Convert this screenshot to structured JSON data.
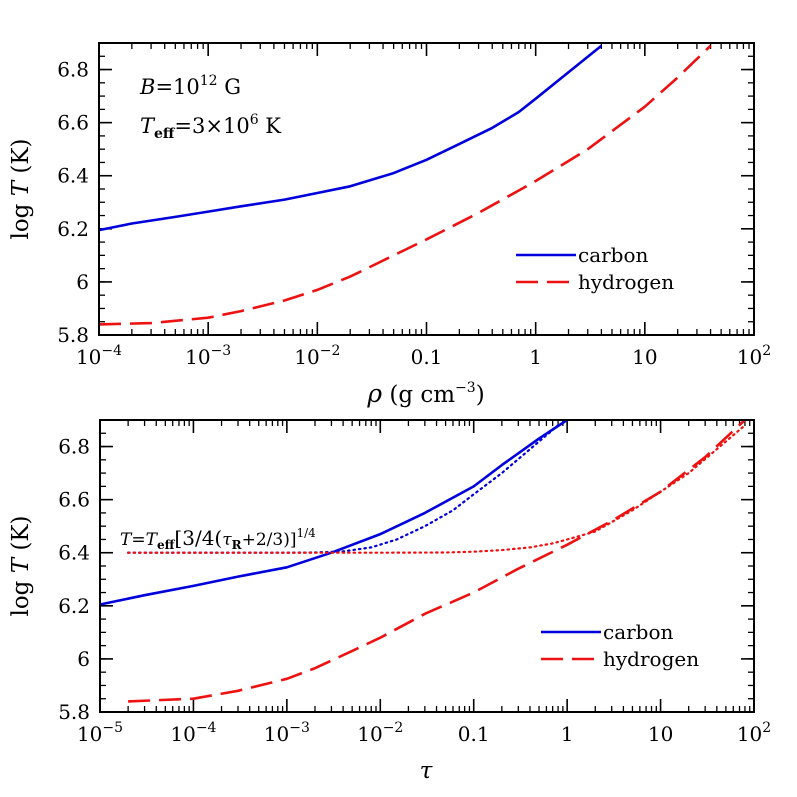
{
  "chart_data": [
    {
      "type": "line",
      "xscale": "log",
      "xlim": [
        0.0001,
        100
      ],
      "ylim": [
        5.8,
        6.9
      ],
      "xticks": [
        {
          "v": 0.0001,
          "base": "10",
          "exp": "−4",
          "text": ""
        },
        {
          "v": 0.001,
          "base": "10",
          "exp": "−3",
          "text": ""
        },
        {
          "v": 0.01,
          "base": "10",
          "exp": "−2",
          "text": ""
        },
        {
          "v": 0.1,
          "text": "0.1"
        },
        {
          "v": 1,
          "text": "1"
        },
        {
          "v": 10,
          "text": "10"
        },
        {
          "v": 100,
          "base": "10",
          "exp": "2",
          "text": ""
        }
      ],
      "yticks": [
        {
          "v": 5.8,
          "text": "5.8"
        },
        {
          "v": 6.0,
          "text": "6"
        },
        {
          "v": 6.2,
          "text": "6.2"
        },
        {
          "v": 6.4,
          "text": "6.4"
        },
        {
          "v": 6.6,
          "text": "6.6"
        },
        {
          "v": 6.8,
          "text": "6.8"
        }
      ],
      "xlabel": {
        "symbol": "ρ",
        "text": "(g cm",
        "exp": "−3",
        "close": ")"
      },
      "ylabel": {
        "pre": "log",
        "sym": "T",
        "post": "(K)"
      },
      "annotation": {
        "line1": {
          "sym": "B",
          "eq": "=10",
          "exp": "12",
          "unit": " G"
        },
        "line2": {
          "sym": "T",
          "sub": "eff",
          "eq": "=3×10",
          "exp": "6",
          "unit": " K"
        }
      },
      "legend_position": "lower-right",
      "series": [
        {
          "name": "carbon",
          "color": "#0000dd",
          "style": "solid",
          "x": [
            0.0001,
            0.0002,
            0.0005,
            0.001,
            0.002,
            0.005,
            0.01,
            0.02,
            0.05,
            0.1,
            0.2,
            0.4,
            0.7,
            1,
            2,
            4
          ],
          "y": [
            6.195,
            6.22,
            6.245,
            6.265,
            6.285,
            6.31,
            6.335,
            6.36,
            6.41,
            6.46,
            6.52,
            6.58,
            6.64,
            6.69,
            6.79,
            6.89
          ]
        },
        {
          "name": "hydrogen",
          "color": "#ee1111",
          "style": "dashed",
          "x": [
            0.0001,
            0.0003,
            0.001,
            0.002,
            0.005,
            0.01,
            0.02,
            0.05,
            0.1,
            0.3,
            1,
            3,
            10,
            20,
            40
          ],
          "y": [
            5.84,
            5.845,
            5.865,
            5.89,
            5.93,
            5.97,
            6.02,
            6.1,
            6.16,
            6.26,
            6.38,
            6.5,
            6.66,
            6.77,
            6.89
          ]
        }
      ]
    },
    {
      "type": "line",
      "xscale": "log",
      "xlim": [
        1e-05,
        100
      ],
      "ylim": [
        5.8,
        6.9
      ],
      "xticks": [
        {
          "v": 1e-05,
          "base": "10",
          "exp": "−5",
          "text": ""
        },
        {
          "v": 0.0001,
          "base": "10",
          "exp": "−4",
          "text": ""
        },
        {
          "v": 0.001,
          "base": "10",
          "exp": "−3",
          "text": ""
        },
        {
          "v": 0.01,
          "base": "10",
          "exp": "−2",
          "text": ""
        },
        {
          "v": 0.1,
          "text": "0.1"
        },
        {
          "v": 1,
          "text": "1"
        },
        {
          "v": 10,
          "text": "10"
        },
        {
          "v": 100,
          "base": "10",
          "exp": "2",
          "text": ""
        }
      ],
      "yticks": [
        {
          "v": 5.8,
          "text": "5.8"
        },
        {
          "v": 6.0,
          "text": "6"
        },
        {
          "v": 6.2,
          "text": "6.2"
        },
        {
          "v": 6.4,
          "text": "6.4"
        },
        {
          "v": 6.6,
          "text": "6.6"
        },
        {
          "v": 6.8,
          "text": "6.8"
        }
      ],
      "xlabel": {
        "symbol": "τ",
        "text": "",
        "exp": "",
        "close": ""
      },
      "ylabel": {
        "pre": "log",
        "sym": "T",
        "post": "(K)"
      },
      "annotation": {
        "formula": {
          "t": "T",
          "eq": "=",
          "teff": "T",
          "sub": "eff",
          "mid": "[3/4(",
          "tau": "τ",
          "tsub": "R",
          "end": "+2/3)]",
          "exp": "1/4"
        }
      },
      "legend_position": "lower-right",
      "series": [
        {
          "name": "carbon",
          "color": "#0000dd",
          "style": "solid",
          "x": [
            1e-05,
            3e-05,
            0.0001,
            0.0003,
            0.001,
            0.003,
            0.01,
            0.03,
            0.1,
            0.2,
            0.5,
            1
          ],
          "y": [
            6.205,
            6.24,
            6.275,
            6.31,
            6.345,
            6.4,
            6.47,
            6.55,
            6.65,
            6.73,
            6.83,
            6.9
          ]
        },
        {
          "name": "hydrogen",
          "color": "#ee1111",
          "style": "dashed",
          "x": [
            2e-05,
            0.0001,
            0.0003,
            0.001,
            0.002,
            0.005,
            0.01,
            0.03,
            0.1,
            0.3,
            1,
            3,
            10,
            30,
            80
          ],
          "y": [
            5.84,
            5.85,
            5.88,
            5.925,
            5.965,
            6.03,
            6.08,
            6.17,
            6.25,
            6.34,
            6.43,
            6.52,
            6.63,
            6.76,
            6.9
          ]
        },
        {
          "name": "",
          "color": "#0000dd",
          "style": "dotted",
          "x": [
            2e-05,
            0.0001,
            0.0005,
            0.001,
            0.002,
            0.004,
            0.008,
            0.015,
            0.03,
            0.06,
            0.1,
            0.2,
            0.4,
            0.8
          ],
          "y": [
            6.4,
            6.4,
            6.4,
            6.4,
            6.401,
            6.405,
            6.42,
            6.45,
            6.5,
            6.56,
            6.62,
            6.7,
            6.79,
            6.88
          ]
        },
        {
          "name": "",
          "color": "#ee1111",
          "style": "dotted",
          "x": [
            2e-05,
            0.001,
            0.01,
            0.05,
            0.1,
            0.2,
            0.4,
            0.7,
            1,
            2,
            5,
            10,
            20,
            40,
            80
          ],
          "y": [
            6.4,
            6.4,
            6.4,
            6.401,
            6.404,
            6.41,
            6.42,
            6.435,
            6.45,
            6.48,
            6.56,
            6.63,
            6.7,
            6.79,
            6.88
          ]
        }
      ]
    }
  ]
}
